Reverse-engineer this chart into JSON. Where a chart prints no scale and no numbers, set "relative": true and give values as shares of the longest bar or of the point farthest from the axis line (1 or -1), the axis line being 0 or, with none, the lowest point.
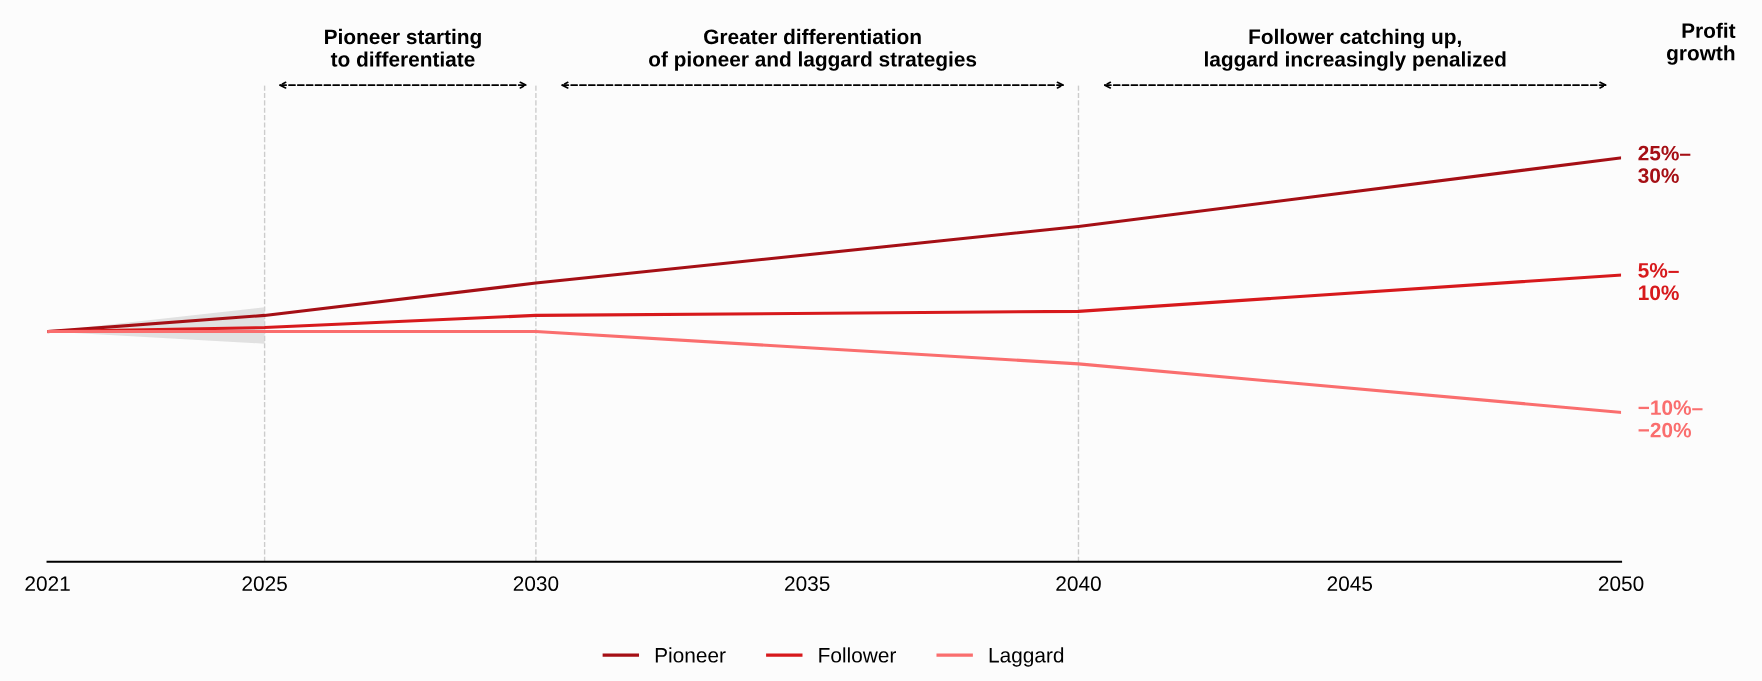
{
  "chart_data": {
    "type": "line",
    "relative": true,
    "x": [
      2021,
      2025,
      2030,
      2040,
      2050
    ],
    "xlim": [
      2021,
      2050
    ],
    "xticks": [
      2021,
      2025,
      2030,
      2035,
      2040,
      2045,
      2050
    ],
    "series": [
      {
        "name": "Pioneer",
        "color": "#a50f15",
        "values": [
          0.57,
          0.61,
          0.69,
          0.83,
          1.0
        ],
        "lower": [
          0.57,
          0.54,
          null,
          null,
          null
        ],
        "upper": [
          0.57,
          0.63,
          null,
          null,
          null
        ]
      },
      {
        "name": "Follower",
        "color": "#d7191c",
        "values": [
          0.57,
          0.58,
          0.61,
          0.62,
          0.71
        ]
      },
      {
        "name": "Laggard",
        "color": "#fa6e6e",
        "values": [
          0.57,
          0.57,
          0.57,
          0.49,
          0.37
        ]
      }
    ],
    "ref_lines": [
      {
        "axis": "x",
        "value": 2025,
        "color": "#cccccc",
        "line_style": "dashed"
      },
      {
        "axis": "x",
        "value": 2030,
        "color": "#cccccc",
        "line_style": "dashed"
      },
      {
        "axis": "x",
        "value": 2040,
        "color": "#cccccc",
        "line_style": "dashed"
      }
    ],
    "annotations": [
      "Pioneer starting\nto differentiate",
      "Greater differentiation\nof pioneer and laggard strategies",
      "Follower catching up,\nlaggard increasingly penalized",
      "Profit\ngrowth",
      "25%–\n30%",
      "5%–\n10%",
      "−10%–\n−20%"
    ],
    "legend": "bottom",
    "grid": false,
    "marker": "none",
    "line_style": "solid"
  }
}
